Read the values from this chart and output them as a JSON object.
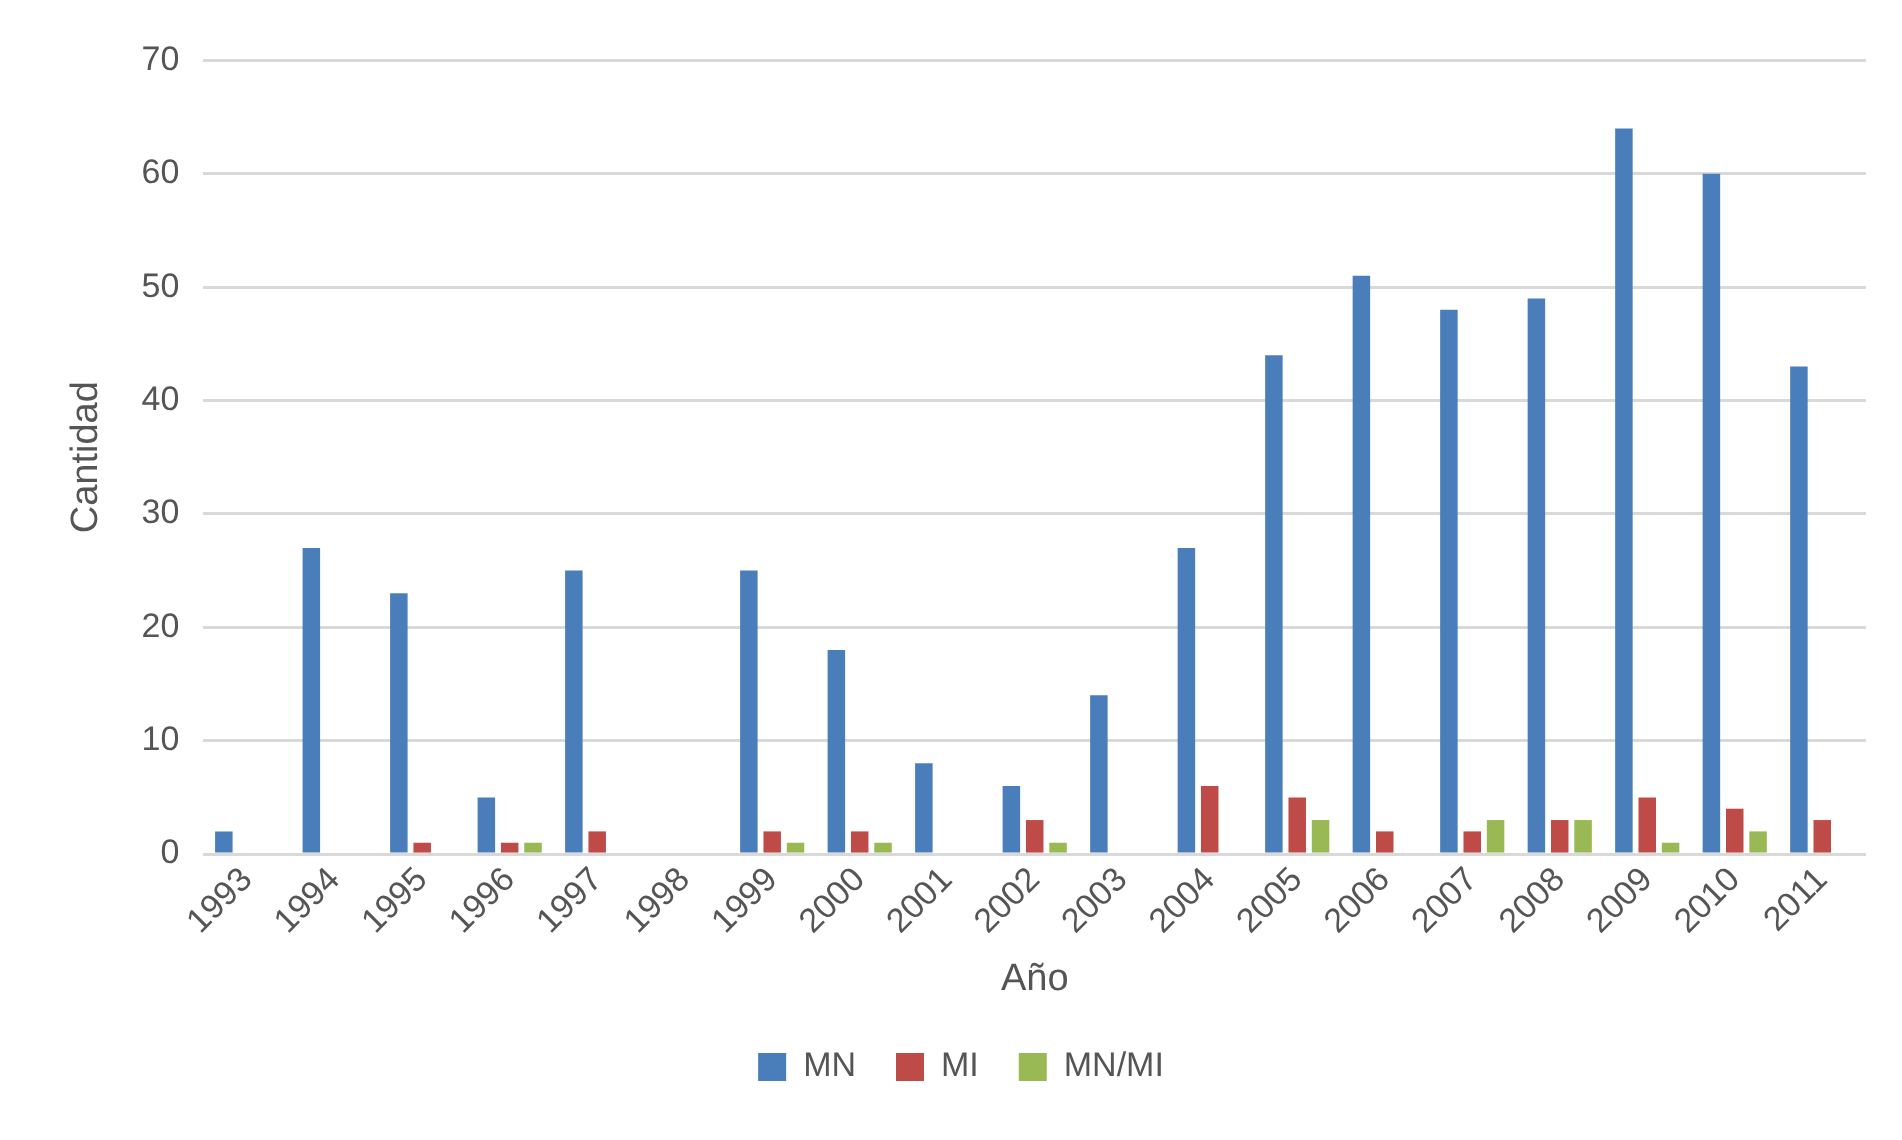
{
  "chart_data": {
    "type": "bar",
    "xlabel": "Año",
    "ylabel": "Cantidad",
    "categories": [
      "1993",
      "1994",
      "1995",
      "1996",
      "1997",
      "1998",
      "1999",
      "2000",
      "2001",
      "2002",
      "2003",
      "2004",
      "2005",
      "2006",
      "2007",
      "2008",
      "2009",
      "2010",
      "2011"
    ],
    "series": [
      {
        "name": "MN",
        "color": "#4a7ebb",
        "values": [
          2,
          27,
          23,
          5,
          25,
          0,
          25,
          18,
          8,
          6,
          14,
          27,
          44,
          51,
          48,
          49,
          64,
          60,
          43
        ]
      },
      {
        "name": "MI",
        "color": "#be4b48",
        "values": [
          0,
          0,
          1,
          1,
          2,
          0,
          2,
          2,
          0,
          3,
          0,
          6,
          5,
          2,
          2,
          3,
          5,
          4,
          3
        ]
      },
      {
        "name": "MN/MI",
        "color": "#98b954",
        "values": [
          0,
          0,
          0,
          1,
          0,
          0,
          1,
          1,
          0,
          1,
          0,
          0,
          3,
          0,
          3,
          3,
          1,
          2,
          0
        ]
      }
    ],
    "ylim": [
      0,
      70
    ],
    "yticks": [
      0,
      10,
      20,
      30,
      40,
      50,
      60,
      70
    ],
    "grid": "y",
    "legend": "bottom"
  }
}
